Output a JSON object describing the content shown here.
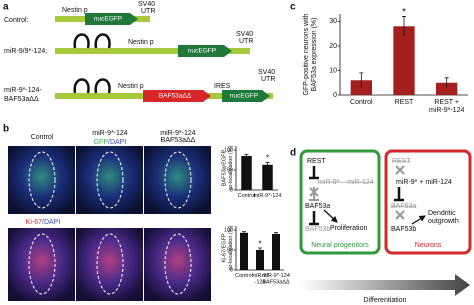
{
  "panel_a": {
    "label": "a",
    "rows": [
      {
        "name": [
          "Control:"
        ],
        "promoter": "Nestin p",
        "reporter": "nucEGFP",
        "utr": [
          "SV40",
          "UTR"
        ]
      },
      {
        "name": [
          "miR-9/9*-124:"
        ],
        "promoter": "Nestin p",
        "reporter": "nucEGFP",
        "utr": [
          "SV40",
          "UTR"
        ]
      },
      {
        "name": [
          "miR-9*-124-",
          "BAF53aΔΔ"
        ],
        "promoter": "Nestin p",
        "insert": "BAF53aΔΔ",
        "ires": "IRES",
        "reporter": "nucEGFP",
        "utr": [
          "SV40",
          "UTR"
        ]
      }
    ]
  },
  "panel_b": {
    "label": "b",
    "columns": [
      [
        "Control"
      ],
      [
        "miR-9*-124"
      ],
      [
        "miR-9*-124",
        "BAF53aΔΔ"
      ]
    ],
    "stain_top": [
      "GFP",
      "/DAPI"
    ],
    "stain_bottom": [
      "Ki-67",
      "/DAPI"
    ],
    "charts": [
      {
        "type": "bar",
        "ylabel": [
          "BAF53a/EGFP",
          "co-localization (%)"
        ],
        "categories": [
          [
            "Control"
          ],
          [
            "miR-9*-124"
          ]
        ],
        "values": [
          85,
          63
        ],
        "errors": [
          4,
          6
        ],
        "significance": [
          null,
          "*"
        ],
        "color": "#111111",
        "ylim": [
          0,
          110
        ],
        "yticks": [
          0,
          50,
          100
        ]
      },
      {
        "type": "bar",
        "ylabel": [
          "Ki-67/EGFP",
          "co-localization (%)"
        ],
        "categories": [
          [
            "Control"
          ],
          [
            "miR-9*",
            "-124"
          ],
          [
            "miR-9*-124",
            "BAF53aΔΔ"
          ]
        ],
        "values": [
          93,
          50,
          90
        ],
        "errors": [
          3,
          5,
          4
        ],
        "significance": [
          null,
          "*",
          null
        ],
        "color": "#111111",
        "ylim": [
          0,
          110
        ],
        "yticks": [
          0,
          50,
          100
        ]
      }
    ]
  },
  "panel_c": {
    "label": "c",
    "chart": {
      "type": "bar",
      "ylabel": [
        "GFP-positive neurons with",
        "BAF53a expression (%)"
      ],
      "categories": [
        [
          "Control"
        ],
        [
          "REST"
        ],
        [
          "REST +",
          "miR-9*-124"
        ]
      ],
      "values": [
        6,
        28,
        5
      ],
      "errors": [
        3,
        4,
        2
      ],
      "significance": [
        null,
        "*",
        null
      ],
      "color": "#a3201f",
      "ylim": [
        0,
        33
      ],
      "yticks": [
        0,
        10,
        20,
        30
      ]
    }
  },
  "panel_d": {
    "label": "d",
    "progenitors": {
      "rest": "REST",
      "mirs": "miR-9* – miR-124",
      "baf53a": "BAF53a",
      "baf53b": "BAF53b",
      "outcome": "Proliferation",
      "title": "Neural progenitors"
    },
    "neurons": {
      "rest": "REST",
      "mirs": "miR-9* + miR-124",
      "baf53a": "BAF53a",
      "baf53b": "BAF53b",
      "outcome": [
        "Dendritic",
        "outgrowth"
      ],
      "title": "Neurons"
    },
    "arrow": "Differentiation"
  }
}
